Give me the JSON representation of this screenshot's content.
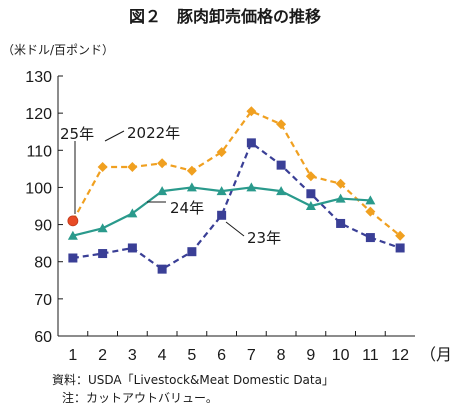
{
  "chart_data": {
    "type": "line",
    "title": "図２　豚肉卸売価格の推移",
    "ylabel": "（米ドル/百ポンド）",
    "xlabel": "（月）",
    "categories": [
      "1",
      "2",
      "3",
      "4",
      "5",
      "6",
      "7",
      "8",
      "9",
      "10",
      "11",
      "12"
    ],
    "ylim": [
      60,
      130
    ],
    "yticks": [
      60,
      70,
      80,
      90,
      100,
      110,
      120,
      130
    ],
    "grid": false,
    "series": [
      {
        "name": "2022年",
        "color": "#f0a020",
        "style": "dashed",
        "marker": "diamond",
        "values": [
          91,
          105.5,
          105.5,
          106.5,
          104.5,
          109.5,
          120.5,
          117,
          103,
          101,
          93.5,
          87
        ]
      },
      {
        "name": "23年",
        "color": "#3a3f96",
        "style": "dashed",
        "marker": "square",
        "values": [
          81,
          82.2,
          83.7,
          78,
          82.7,
          92.5,
          112,
          106,
          98.3,
          90.3,
          86.5,
          83.7
        ]
      },
      {
        "name": "24年",
        "color": "#2a9a8c",
        "style": "solid",
        "marker": "triangle",
        "values": [
          87,
          89,
          93,
          99,
          100,
          99,
          100,
          99,
          95,
          97,
          96.5,
          null
        ]
      },
      {
        "name": "25年",
        "color": "#e84b25",
        "style": "solid",
        "marker": "circle",
        "values": [
          91,
          null,
          null,
          null,
          null,
          null,
          null,
          null,
          null,
          null,
          null,
          null
        ]
      }
    ],
    "annotations": [
      "25年",
      "2022年",
      "24年",
      "23年"
    ]
  },
  "source_note": "資料：USDA「Livestock&Meat Domestic Data」",
  "footnote": "注：カットアウトバリュー。"
}
